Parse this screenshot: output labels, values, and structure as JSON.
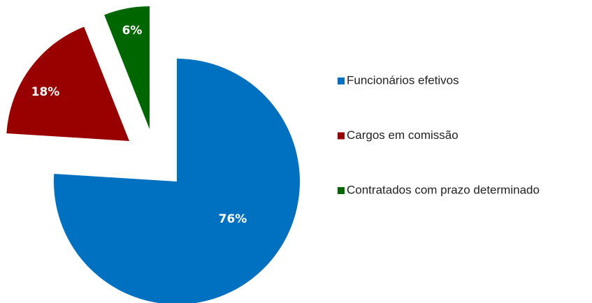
{
  "chart_data": {
    "type": "pie",
    "categories": [
      "Funcionários efetivos",
      "Cargos em comissão",
      "Contratados com prazo determinado"
    ],
    "values": [
      76,
      18,
      6
    ],
    "value_labels": [
      "76%",
      "18%",
      "6%"
    ],
    "colors": [
      "#0070c0",
      "#990000",
      "#006600"
    ],
    "legend": "right"
  }
}
